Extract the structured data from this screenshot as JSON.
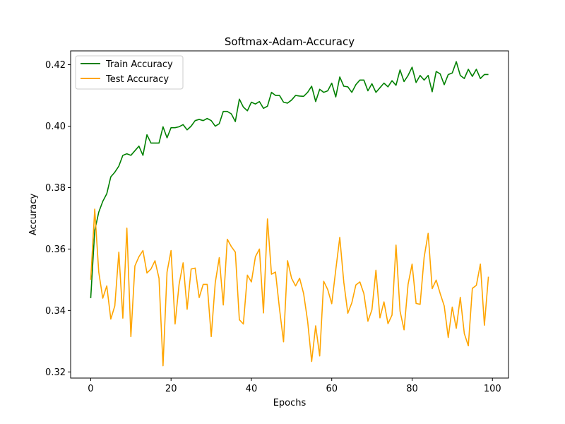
{
  "chart_data": {
    "type": "line",
    "title": "Softmax-Adam-Accuracy",
    "xlabel": "Epochs",
    "ylabel": "Accuracy",
    "xlim": [
      -5,
      104
    ],
    "ylim": [
      0.318,
      0.4245
    ],
    "xticks": [
      0,
      20,
      40,
      60,
      80,
      100
    ],
    "yticks": [
      0.32,
      0.34,
      0.36,
      0.38,
      0.4,
      0.42
    ],
    "ytick_labels": [
      "0.32",
      "0.34",
      "0.36",
      "0.38",
      "0.40",
      "0.42"
    ],
    "grid": false,
    "legend_position": "top-left",
    "x": [
      0,
      1,
      2,
      3,
      4,
      5,
      6,
      7,
      8,
      9,
      10,
      11,
      12,
      13,
      14,
      15,
      16,
      17,
      18,
      19,
      20,
      21,
      22,
      23,
      24,
      25,
      26,
      27,
      28,
      29,
      30,
      31,
      32,
      33,
      34,
      35,
      36,
      37,
      38,
      39,
      40,
      41,
      42,
      43,
      44,
      45,
      46,
      47,
      48,
      49,
      50,
      51,
      52,
      53,
      54,
      55,
      56,
      57,
      58,
      59,
      60,
      61,
      62,
      63,
      64,
      65,
      66,
      67,
      68,
      69,
      70,
      71,
      72,
      73,
      74,
      75,
      76,
      77,
      78,
      79,
      80,
      81,
      82,
      83,
      84,
      85,
      86,
      87,
      88,
      89,
      90,
      91,
      92,
      93,
      94,
      95,
      96,
      97,
      98,
      99
    ],
    "series": [
      {
        "name": "Train Accuracy",
        "color": "#008000",
        "values": [
          0.344,
          0.366,
          0.372,
          0.3755,
          0.378,
          0.3835,
          0.385,
          0.387,
          0.3905,
          0.391,
          0.3905,
          0.392,
          0.3935,
          0.3905,
          0.3972,
          0.3945,
          0.3945,
          0.3945,
          0.3998,
          0.3962,
          0.3995,
          0.3995,
          0.3998,
          0.4005,
          0.3988,
          0.4,
          0.4018,
          0.4022,
          0.4018,
          0.4025,
          0.4018,
          0.4,
          0.4008,
          0.4048,
          0.4048,
          0.404,
          0.4015,
          0.4088,
          0.4062,
          0.405,
          0.4078,
          0.4072,
          0.408,
          0.4058,
          0.4065,
          0.411,
          0.41,
          0.41,
          0.4078,
          0.4075,
          0.4085,
          0.41,
          0.4098,
          0.4097,
          0.411,
          0.413,
          0.408,
          0.412,
          0.411,
          0.4115,
          0.414,
          0.4095,
          0.416,
          0.413,
          0.4128,
          0.411,
          0.4135,
          0.415,
          0.415,
          0.4115,
          0.4138,
          0.411,
          0.4125,
          0.414,
          0.4128,
          0.4148,
          0.4133,
          0.4183,
          0.4145,
          0.4165,
          0.4192,
          0.4142,
          0.4165,
          0.415,
          0.4165,
          0.4112,
          0.4178,
          0.417,
          0.4135,
          0.4168,
          0.4173,
          0.421,
          0.4165,
          0.4155,
          0.4185,
          0.4162,
          0.4185,
          0.4155,
          0.4168,
          0.4168
        ]
      },
      {
        "name": "Test Accuracy",
        "color": "#FFA500",
        "values": [
          0.35,
          0.373,
          0.3525,
          0.344,
          0.348,
          0.3372,
          0.3415,
          0.359,
          0.3375,
          0.3668,
          0.3315,
          0.3545,
          0.3575,
          0.3595,
          0.3522,
          0.3535,
          0.3562,
          0.3505,
          0.322,
          0.3525,
          0.3595,
          0.3356,
          0.3485,
          0.3555,
          0.3404,
          0.3535,
          0.3538,
          0.3442,
          0.3485,
          0.3485,
          0.3315,
          0.349,
          0.3572,
          0.3418,
          0.3632,
          0.3608,
          0.359,
          0.337,
          0.3356,
          0.3515,
          0.3493,
          0.3575,
          0.36,
          0.3392,
          0.3698,
          0.3518,
          0.3525,
          0.3405,
          0.3298,
          0.3562,
          0.3505,
          0.348,
          0.3505,
          0.3455,
          0.3365,
          0.3234,
          0.335,
          0.3252,
          0.3495,
          0.3468,
          0.3422,
          0.3532,
          0.3638,
          0.3492,
          0.3391,
          0.3425,
          0.3483,
          0.3493,
          0.3455,
          0.3365,
          0.3402,
          0.3531,
          0.3376,
          0.3428,
          0.3357,
          0.3385,
          0.3613,
          0.3398,
          0.3337,
          0.3485,
          0.3551,
          0.3423,
          0.342,
          0.3573,
          0.3651,
          0.3471,
          0.3499,
          0.3455,
          0.3415,
          0.3312,
          0.3411,
          0.3342,
          0.3443,
          0.3325,
          0.3285,
          0.3472,
          0.3482,
          0.3551,
          0.3352,
          0.351
        ]
      }
    ]
  }
}
